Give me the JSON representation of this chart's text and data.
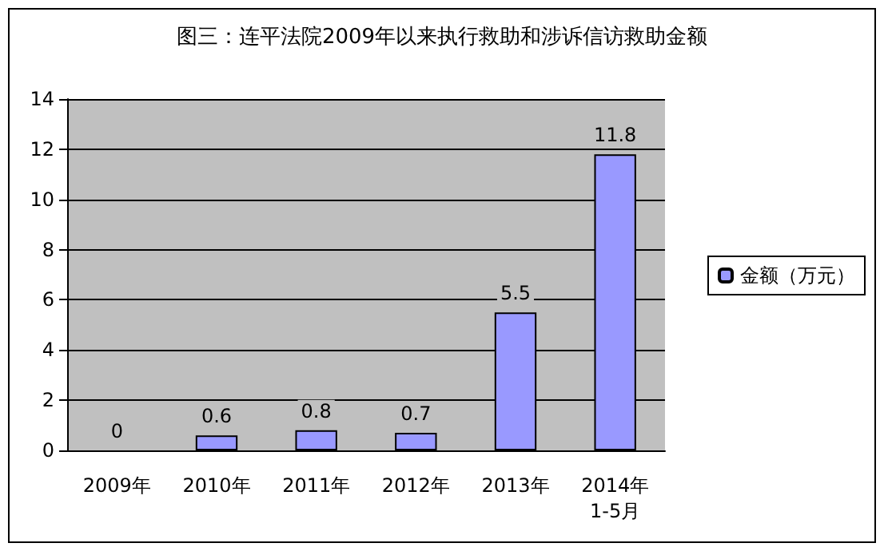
{
  "chart_data": {
    "type": "bar",
    "title": "图三：连平法院2009年以来执行救助和涉诉信访救助金额",
    "categories": [
      "2009年",
      "2010年",
      "2011年",
      "2012年",
      "2013年",
      "2014年\n1-5月"
    ],
    "series": [
      {
        "name": "金额（万元）",
        "color": "#9999ff",
        "values": [
          0,
          0.6,
          0.8,
          0.7,
          5.5,
          11.8
        ]
      }
    ],
    "ylim": [
      0,
      14
    ],
    "yticks": [
      0,
      2,
      4,
      6,
      8,
      10,
      12,
      14
    ],
    "grid": "y",
    "legend": "right",
    "data_labels": true
  }
}
